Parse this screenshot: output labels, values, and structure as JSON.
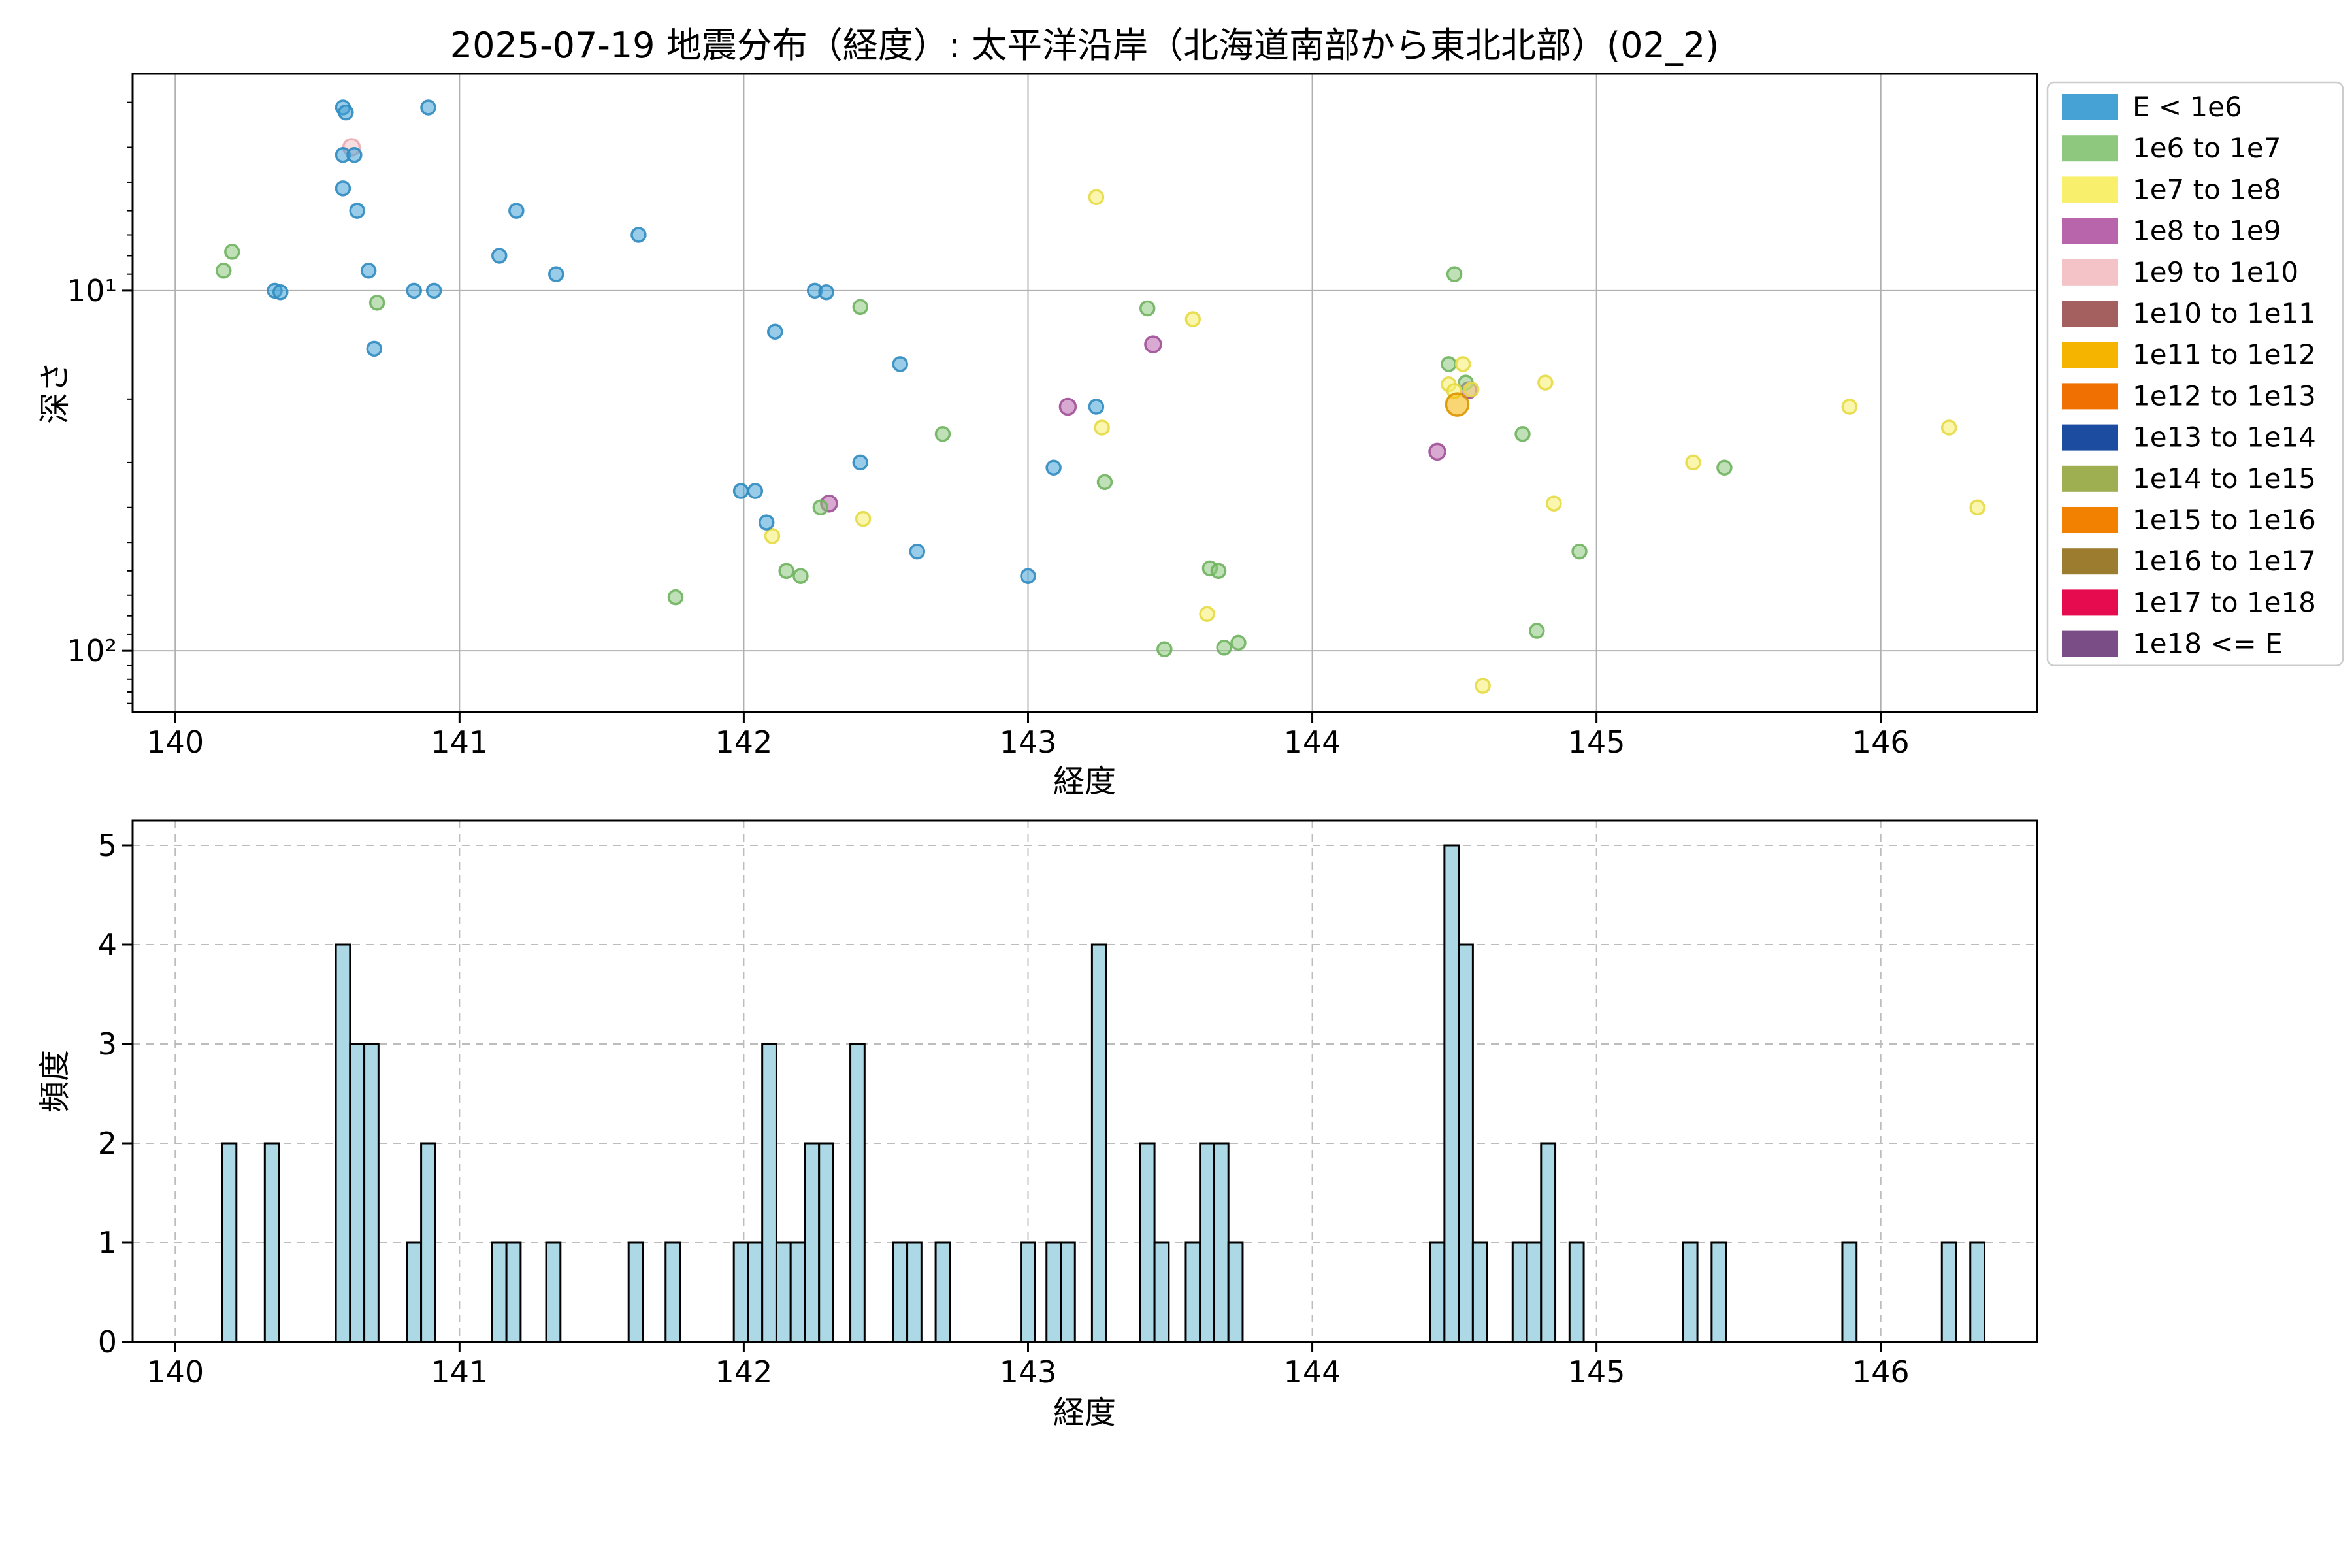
{
  "title": "2025-07-19 地震分布（経度）: 太平洋沿岸（北海道南部から東北北部）(02_2)",
  "legend": {
    "entries": [
      {
        "label": "E < 1e6",
        "color": "#46A2D5"
      },
      {
        "label": "1e6 to 1e7",
        "color": "#8DC87E"
      },
      {
        "label": "1e7 to 1e8",
        "color": "#F8EF6C"
      },
      {
        "label": "1e8 to 1e9",
        "color": "#B965AC"
      },
      {
        "label": "1e9 to 1e10",
        "color": "#F4C3C8"
      },
      {
        "label": "1e10 to 1e11",
        "color": "#A3605E"
      },
      {
        "label": "1e11 to 1e12",
        "color": "#F4B400"
      },
      {
        "label": "1e12 to 1e13",
        "color": "#F07101"
      },
      {
        "label": "1e13 to 1e14",
        "color": "#1C4C9F"
      },
      {
        "label": "1e14 to 1e15",
        "color": "#9DAF51"
      },
      {
        "label": "1e15 to 1e16",
        "color": "#F28102"
      },
      {
        "label": "1e16 to 1e17",
        "color": "#9C7D30"
      },
      {
        "label": "1e17 to 1e18",
        "color": "#E60B4F"
      },
      {
        "label": "1e18 <= E",
        "color": "#7A4D86"
      }
    ]
  },
  "chart_data": [
    {
      "type": "scatter",
      "title": "2025-07-19 地震分布（経度）: 太平洋沿岸（北海道南部から東北北部）(02_2)",
      "xlabel": "経度",
      "ylabel": "深さ",
      "x_range": [
        139.85,
        146.55
      ],
      "y_scale": "log_inverted",
      "y_range_depth": [
        2.5,
        148
      ],
      "xticks": [
        140,
        141,
        142,
        143,
        144,
        145,
        146
      ],
      "yticks": [
        {
          "value": 10,
          "label": "10¹"
        },
        {
          "value": 100,
          "label": "10²"
        }
      ],
      "minor_yticks": [
        3,
        4,
        5,
        6,
        7,
        8,
        9,
        20,
        30,
        40,
        50,
        60,
        70,
        80,
        90,
        110,
        120,
        130,
        140
      ],
      "grid": "solid",
      "legend_position": "upper right, outside axes",
      "series": [
        {
          "name": "1e8 to 1e9",
          "color": "#B965AC",
          "edge": "#A04F97",
          "radius": 12,
          "points": [
            [
              142.3,
              39
            ],
            [
              143.14,
              21
            ],
            [
              143.44,
              14.1
            ],
            [
              144.44,
              28
            ],
            [
              144.55,
              18.9
            ]
          ]
        },
        {
          "name": "1e9 to 1e10",
          "color": "#F4C3C8",
          "edge": "#ECA8B0",
          "radius": 12.5,
          "points": [
            [
              140.62,
              4.0
            ]
          ]
        },
        {
          "name": "1e6 to 1e7",
          "color": "#8DC87E",
          "edge": "#6FB25F",
          "radius": 10.5,
          "points": [
            [
              140.17,
              8.8
            ],
            [
              140.2,
              7.8
            ],
            [
              140.71,
              10.8
            ],
            [
              141.76,
              71
            ],
            [
              142.15,
              60
            ],
            [
              142.2,
              62
            ],
            [
              142.27,
              40
            ],
            [
              142.41,
              11.1
            ],
            [
              142.7,
              25
            ],
            [
              143.27,
              34
            ],
            [
              143.42,
              11.2
            ],
            [
              143.48,
              99
            ],
            [
              143.64,
              59
            ],
            [
              143.67,
              60
            ],
            [
              143.69,
              98
            ],
            [
              143.74,
              95
            ],
            [
              144.48,
              16
            ],
            [
              144.5,
              9.0
            ],
            [
              144.54,
              18
            ],
            [
              144.74,
              25
            ],
            [
              144.79,
              88
            ],
            [
              144.94,
              53
            ],
            [
              145.45,
              31
            ]
          ]
        },
        {
          "name": "1e7 to 1e8",
          "color": "#F8EF6C",
          "edge": "#E5DA45",
          "radius": 10.5,
          "points": [
            [
              142.1,
              48
            ],
            [
              142.42,
              43
            ],
            [
              143.24,
              5.5
            ],
            [
              143.26,
              24
            ],
            [
              143.58,
              12
            ],
            [
              143.63,
              79
            ],
            [
              144.48,
              18.2
            ],
            [
              144.5,
              19
            ],
            [
              144.53,
              16
            ],
            [
              144.56,
              18.8
            ],
            [
              144.6,
              125
            ],
            [
              144.82,
              18
            ],
            [
              144.85,
              39
            ],
            [
              145.34,
              30
            ],
            [
              145.89,
              21
            ],
            [
              146.24,
              24
            ],
            [
              146.34,
              40
            ]
          ]
        },
        {
          "name": "E < 1e6",
          "color": "#46A2D5",
          "edge": "#2F8BC0",
          "radius": 10.5,
          "points": [
            [
              140.35,
              10.0
            ],
            [
              140.37,
              10.1
            ],
            [
              140.59,
              3.1
            ],
            [
              140.6,
              3.2
            ],
            [
              140.59,
              4.2
            ],
            [
              140.59,
              5.2
            ],
            [
              140.63,
              4.2
            ],
            [
              140.64,
              6.0
            ],
            [
              140.68,
              8.8
            ],
            [
              140.7,
              14.5
            ],
            [
              140.84,
              10.0
            ],
            [
              140.89,
              3.1
            ],
            [
              140.91,
              10.0
            ],
            [
              141.14,
              8.0
            ],
            [
              141.2,
              6.0
            ],
            [
              141.34,
              9.0
            ],
            [
              141.63,
              7.0
            ],
            [
              141.99,
              36
            ],
            [
              142.04,
              36
            ],
            [
              142.08,
              44
            ],
            [
              142.11,
              13
            ],
            [
              142.25,
              10.0
            ],
            [
              142.29,
              10.1
            ],
            [
              142.41,
              30
            ],
            [
              142.55,
              16
            ],
            [
              142.61,
              53
            ],
            [
              143.0,
              62
            ],
            [
              143.09,
              31
            ],
            [
              143.24,
              21
            ]
          ]
        },
        {
          "name": "1e11 to 1e12",
          "color": "#F4B400",
          "edge": "#DB9500",
          "radius": 17,
          "points": [
            [
              144.51,
              20.7
            ]
          ]
        }
      ]
    },
    {
      "type": "histogram",
      "xlabel": "経度",
      "ylabel": "頻度",
      "x_range": [
        139.85,
        146.55
      ],
      "ylim": [
        0,
        5.25
      ],
      "xticks": [
        140,
        141,
        142,
        143,
        144,
        145,
        146
      ],
      "yticks": [
        0,
        1,
        2,
        3,
        4,
        5
      ],
      "grid": "dashed",
      "bin_width": 0.05,
      "bar_color": "#ADD8E6",
      "bar_edge": "#000000",
      "bars": [
        [
          140.19,
          2
        ],
        [
          140.34,
          2
        ],
        [
          140.59,
          4
        ],
        [
          140.64,
          3
        ],
        [
          140.69,
          3
        ],
        [
          140.84,
          1
        ],
        [
          140.89,
          2
        ],
        [
          141.14,
          1
        ],
        [
          141.19,
          1
        ],
        [
          141.33,
          1
        ],
        [
          141.62,
          1
        ],
        [
          141.75,
          1
        ],
        [
          141.99,
          1
        ],
        [
          142.04,
          1
        ],
        [
          142.09,
          3
        ],
        [
          142.14,
          1
        ],
        [
          142.19,
          1
        ],
        [
          142.24,
          2
        ],
        [
          142.29,
          2
        ],
        [
          142.4,
          3
        ],
        [
          142.55,
          1
        ],
        [
          142.6,
          1
        ],
        [
          142.7,
          1
        ],
        [
          143.0,
          1
        ],
        [
          143.09,
          1
        ],
        [
          143.14,
          1
        ],
        [
          143.25,
          4
        ],
        [
          143.42,
          2
        ],
        [
          143.47,
          1
        ],
        [
          143.58,
          1
        ],
        [
          143.63,
          2
        ],
        [
          143.68,
          2
        ],
        [
          143.73,
          1
        ],
        [
          144.44,
          1
        ],
        [
          144.49,
          5
        ],
        [
          144.54,
          4
        ],
        [
          144.59,
          1
        ],
        [
          144.73,
          1
        ],
        [
          144.78,
          1
        ],
        [
          144.83,
          2
        ],
        [
          144.93,
          1
        ],
        [
          145.33,
          1
        ],
        [
          145.43,
          1
        ],
        [
          145.89,
          1
        ],
        [
          146.24,
          1
        ],
        [
          146.34,
          1
        ]
      ]
    }
  ]
}
